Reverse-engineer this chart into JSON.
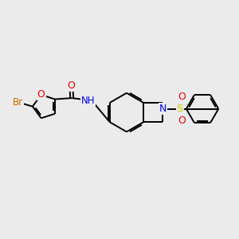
{
  "background_color": "#ebebeb",
  "bond_color": "#000000",
  "bond_width": 1.4,
  "atom_colors": {
    "N": "#0000ee",
    "O": "#ee0000",
    "S": "#cccc00",
    "Br": "#cc6600"
  },
  "font_size": 8.5,
  "figsize": [
    3.0,
    3.0
  ],
  "dpi": 100
}
